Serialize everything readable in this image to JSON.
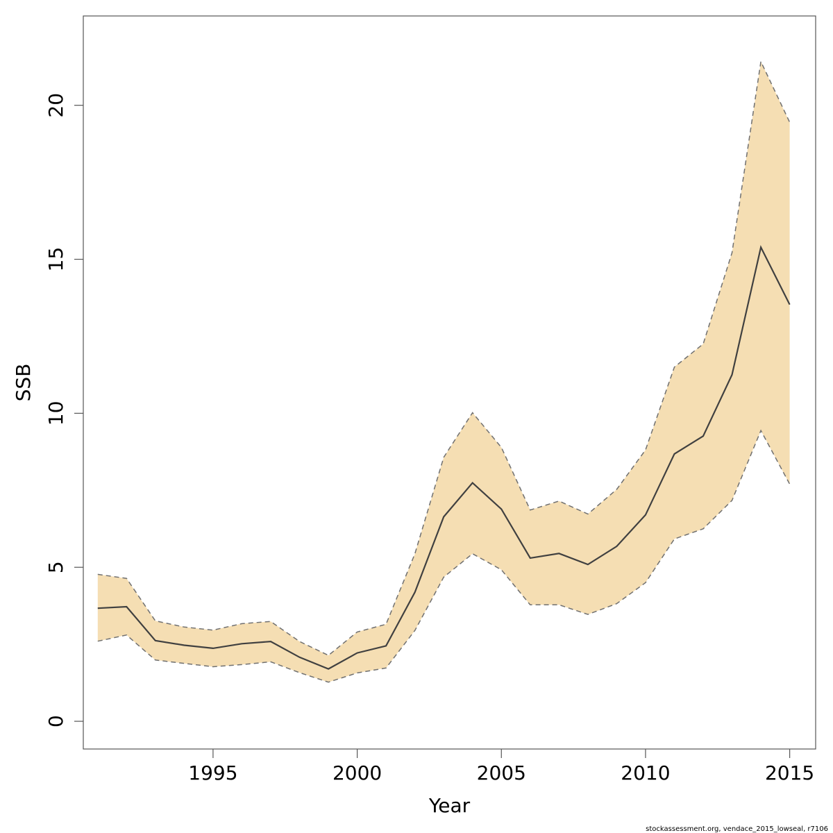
{
  "chart_data": {
    "type": "line",
    "xlabel": "Year",
    "ylabel": "SSB",
    "xlim": [
      1990.5,
      2015.9
    ],
    "ylim": [
      -0.9,
      22.9
    ],
    "x_ticks": [
      1995,
      2000,
      2005,
      2010,
      2015
    ],
    "y_ticks": [
      0,
      5,
      10,
      15,
      20
    ],
    "grid": false,
    "x": [
      1991,
      1992,
      1993,
      1994,
      1995,
      1996,
      1997,
      1998,
      1999,
      2000,
      2001,
      2002,
      2003,
      2004,
      2005,
      2006,
      2007,
      2008,
      2009,
      2010,
      2011,
      2012,
      2013,
      2014,
      2015
    ],
    "series": [
      {
        "role": "estimate",
        "values": [
          3.67,
          3.72,
          2.62,
          2.47,
          2.37,
          2.52,
          2.59,
          2.08,
          1.7,
          2.22,
          2.45,
          4.19,
          6.64,
          7.74,
          6.89,
          5.3,
          5.45,
          5.09,
          5.68,
          6.7,
          8.68,
          9.26,
          11.25,
          15.39,
          13.53
        ]
      },
      {
        "role": "upper",
        "values": [
          4.77,
          4.64,
          3.26,
          3.06,
          2.96,
          3.17,
          3.24,
          2.59,
          2.14,
          2.9,
          3.15,
          5.44,
          8.57,
          10.02,
          8.89,
          6.86,
          7.15,
          6.73,
          7.53,
          8.81,
          11.5,
          12.25,
          15.21,
          21.42,
          19.45
        ]
      },
      {
        "role": "lower",
        "values": [
          2.6,
          2.8,
          1.99,
          1.88,
          1.77,
          1.84,
          1.93,
          1.58,
          1.27,
          1.57,
          1.73,
          2.95,
          4.68,
          5.44,
          4.92,
          3.78,
          3.78,
          3.47,
          3.82,
          4.5,
          5.92,
          6.25,
          7.17,
          9.44,
          7.7
        ]
      }
    ],
    "colors": {
      "band_fill": "#f5deb3",
      "band_edge": "#707070",
      "line": "#404040",
      "frame": "#555555"
    }
  },
  "footer": {
    "credit": "stockassessment.org, vendace_2015_lowseal, r7106"
  }
}
